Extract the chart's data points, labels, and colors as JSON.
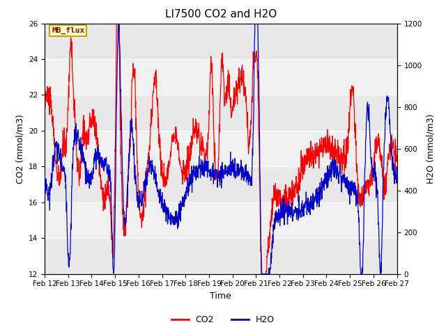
{
  "title": "LI7500 CO2 and H2O",
  "xlabel": "Time",
  "ylabel_left": "CO2 (mmol/m3)",
  "ylabel_right": "H2O (mmol/m3)",
  "ylim_left": [
    12,
    26
  ],
  "ylim_right": [
    0,
    1200
  ],
  "yticks_left": [
    12,
    14,
    16,
    18,
    20,
    22,
    24,
    26
  ],
  "yticks_right": [
    0,
    200,
    400,
    600,
    800,
    1000,
    1200
  ],
  "xtick_labels": [
    "Feb 12",
    "Feb 13",
    "Feb 14",
    "Feb 15",
    "Feb 16",
    "Feb 17",
    "Feb 18",
    "Feb 19",
    "Feb 20",
    "Feb 21",
    "Feb 22",
    "Feb 23",
    "Feb 24",
    "Feb 25",
    "Feb 26",
    "Feb 27"
  ],
  "label_box_text": "MB_flux",
  "label_box_facecolor": "#FFFFCC",
  "label_box_edgecolor": "#BBAA00",
  "co2_color": "#FF0000",
  "h2o_color": "#0000CC",
  "legend_co2": "CO2",
  "legend_h2o": "H2O",
  "plot_bg": "#E8E8E8",
  "band_light": "#F0F0F0",
  "title_fontsize": 11,
  "axis_fontsize": 9,
  "tick_fontsize": 7.5
}
